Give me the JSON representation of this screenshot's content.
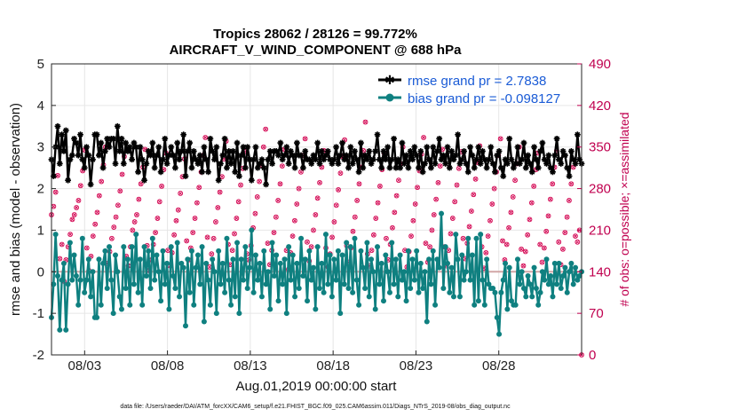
{
  "chart_data": {
    "type": "line",
    "title": "Tropics 28062 / 28126 = 99.772%",
    "subtitle": "AIRCRAFT_V_WIND_COMPONENT @ 688 hPa",
    "xlabel": "Aug.01,2019 00:00:00 start",
    "ylabel": "rmse and bias (model - observation)",
    "y2label": "# of obs: o=possible; ×=assimilated",
    "footnote": "data file: /Users/raeder/DAI/ATM_forcXX/CAM6_setup/f.e21.FHIST_BGC.f09_025.CAM6assim.011/Diags_NTrS_2019-08/obs_diag_output.nc",
    "x_unit": "days since Aug.01,2019 00:00:00",
    "xlim": [
      0,
      32
    ],
    "ylim": [
      -2,
      5
    ],
    "y2lim": [
      0,
      490
    ],
    "xticks": [
      2,
      7,
      12,
      17,
      22,
      27
    ],
    "xtick_labels": [
      "08/03",
      "08/08",
      "08/13",
      "08/18",
      "08/23",
      "08/28"
    ],
    "yticks": [
      -2,
      -1,
      0,
      1,
      2,
      3,
      4,
      5
    ],
    "ytick_labels": [
      "-2",
      "-1",
      "0",
      "1",
      "2",
      "3",
      "4",
      "5"
    ],
    "y2ticks": [
      0,
      70,
      140,
      210,
      280,
      350,
      420,
      490
    ],
    "y2tick_labels": [
      "0",
      "70",
      "140",
      "210",
      "280",
      "350",
      "420",
      "490"
    ],
    "legend_position": "top-right",
    "colors": {
      "rmse": "#000000",
      "bias": "#0f8080",
      "counts": "#d6145c",
      "right_axis": "#c0004f",
      "legend_text": "#1a5bd6",
      "zero_line": "#d2a6a6"
    },
    "series": [
      {
        "name": "rmse grand pr = 2.7838",
        "axis": "left",
        "marker": "star",
        "values": [
          2.7,
          2.3,
          3.0,
          3.5,
          2.6,
          3.3,
          2.9,
          3.4,
          2.2,
          2.7,
          2.8,
          3.2,
          3.1,
          2.8,
          3.3,
          2.7,
          2.5,
          3.0,
          2.8,
          2.1,
          2.7,
          3.3,
          3.3,
          2.8,
          3.1,
          2.5,
          2.9,
          3.2,
          3.0,
          3.2,
          3.2,
          2.6,
          3.5,
          2.9,
          3.2,
          2.6,
          3.1,
          2.9,
          3.0,
          2.7,
          3.1,
          3.0,
          2.4,
          3.0,
          2.7,
          2.2,
          2.6,
          2.9,
          2.8,
          3.1,
          2.5,
          2.8,
          3.0,
          2.4,
          2.7,
          3.2,
          2.6,
          2.8,
          3.0,
          2.8,
          2.5,
          3.1,
          2.7,
          2.9,
          3.3,
          2.3,
          2.9,
          3.1,
          2.5,
          2.9,
          2.7,
          2.6,
          2.8,
          2.4,
          3.0,
          2.7,
          2.4,
          3.2,
          2.9,
          2.7,
          3.0,
          2.2,
          2.6,
          2.8,
          3.2,
          2.5,
          2.9,
          2.6,
          2.9,
          2.4,
          3.1,
          2.3,
          2.8,
          3.0,
          2.5,
          3.0,
          2.7,
          2.2,
          2.7,
          3.0,
          2.5,
          2.6,
          2.7,
          2.5,
          2.1,
          2.7,
          2.9,
          2.6,
          2.9,
          2.9,
          2.8,
          3.1,
          2.7,
          2.8,
          3.0,
          2.6,
          2.9,
          2.8,
          2.5,
          3.1,
          2.8,
          2.8,
          2.5,
          2.9,
          2.7,
          2.7,
          2.6,
          2.8,
          2.7,
          3.1,
          2.6,
          2.9,
          2.7,
          2.8,
          2.9,
          2.7,
          2.6,
          2.7,
          3.0,
          2.6,
          2.8,
          3.1,
          2.7,
          2.8,
          2.5,
          3.0,
          2.6,
          2.9,
          2.7,
          2.4,
          3.1,
          2.5,
          2.8,
          2.7,
          2.9,
          2.6,
          2.7,
          2.9,
          3.3,
          2.7,
          2.5,
          2.9,
          2.7,
          3.0,
          2.5,
          2.7,
          3.2,
          2.5,
          2.7,
          2.5,
          3.1,
          2.6,
          2.8,
          2.5,
          2.9,
          2.7,
          3.0,
          2.8,
          2.5,
          2.9,
          2.4,
          2.6,
          3.0,
          2.7,
          2.5,
          3.0,
          2.6,
          2.9,
          3.2,
          2.7,
          2.8,
          2.6,
          3.0,
          2.5,
          2.9,
          2.7,
          2.8,
          3.3,
          2.6,
          2.7,
          2.9,
          2.6,
          2.4,
          3.0,
          2.8,
          2.5,
          2.7,
          3.0,
          2.6,
          2.9,
          2.7,
          2.5,
          2.7,
          3.0,
          2.6,
          2.4,
          2.8,
          2.9,
          2.5,
          2.3,
          2.7,
          2.6,
          3.2,
          2.7,
          2.5,
          2.6,
          3.0,
          2.6,
          2.7,
          3.1,
          2.5,
          2.8,
          2.6,
          2.4,
          3.0,
          2.7,
          2.5,
          2.9,
          3.1,
          2.7,
          2.6,
          2.8,
          2.5,
          2.4,
          2.8,
          3.2,
          2.7,
          2.6,
          2.9,
          2.8,
          2.5,
          2.3,
          2.9,
          2.7,
          2.6,
          3.3,
          2.7,
          2.6
        ]
      },
      {
        "name": "bias grand pr = -0.098127",
        "axis": "left",
        "marker": "dot",
        "values": [
          -1.1,
          -0.3,
          0.9,
          -0.1,
          -1.4,
          -0.2,
          0.2,
          -1.4,
          -0.3,
          0.7,
          -0.2,
          0.4,
          -0.1,
          -0.8,
          -0.2,
          0.8,
          -0.5,
          -0.2,
          0.3,
          -0.6,
          0.0,
          -1.1,
          -1.1,
          0.3,
          -0.8,
          0.2,
          0.5,
          -0.4,
          0.6,
          -0.2,
          -1.0,
          0.4,
          0.0,
          -0.6,
          -0.9,
          0.6,
          -0.4,
          0.3,
          -0.8,
          0.6,
          -0.3,
          0.9,
          -0.5,
          0.3,
          -0.8,
          0.6,
          -0.1,
          0.5,
          -0.4,
          0.8,
          -0.2,
          0.4,
          0.0,
          -0.7,
          0.5,
          -0.3,
          0.2,
          -0.9,
          0.6,
          -0.1,
          -0.4,
          0.7,
          -0.6,
          0.2,
          0.1,
          -1.3,
          0.3,
          -0.5,
          0.5,
          -0.8,
          0.1,
          0.4,
          -0.3,
          0.6,
          -1.2,
          0.2,
          -0.2,
          -0.8,
          0.3,
          0.0,
          -1.0,
          0.5,
          -0.3,
          0.2,
          -0.5,
          0.8,
          -0.2,
          -0.8,
          0.3,
          -0.6,
          0.7,
          -1.0,
          0.3,
          -0.2,
          0.6,
          -0.4,
          0.1,
          1.0,
          -0.5,
          0.4,
          -0.2,
          0.2,
          -0.6,
          0.5,
          -0.3,
          0.0,
          -0.9,
          0.7,
          -0.1,
          0.4,
          -0.7,
          0.2,
          -0.3,
          0.3,
          -1.0,
          0.6,
          -0.2,
          0.4,
          -0.6,
          0.2,
          -0.4,
          0.8,
          -0.1,
          0.3,
          -0.7,
          0.5,
          -0.2,
          0.1,
          -0.9,
          0.6,
          -0.4,
          0.2,
          -0.5,
          0.9,
          -0.3,
          0.4,
          -0.6,
          0.3,
          -0.2,
          0.5,
          -1.0,
          0.4,
          -0.3,
          0.7,
          -0.4,
          0.6,
          -0.5,
          0.8,
          -0.2,
          -0.8,
          0.5,
          0.1,
          -0.4,
          0.7,
          -0.6,
          0.3,
          0.0,
          -0.9,
          0.6,
          -0.3,
          0.2,
          -0.7,
          0.4,
          0.0,
          -0.5,
          0.7,
          -0.3,
          0.3,
          -0.6,
          0.4,
          -0.2,
          0.0,
          -0.7,
          0.5,
          -0.4,
          0.3,
          -0.2,
          0.5,
          -0.5,
          0.2,
          -0.4,
          0.0,
          -1.2,
          0.3,
          -0.3,
          0.5,
          -0.8,
          0.3,
          0.1,
          1.4,
          -0.4,
          0.6,
          0.2,
          -0.5,
          0.1,
          -0.6,
          0.9,
          0.3,
          -0.6,
          0.4,
          -0.2,
          0.0,
          0.8,
          -0.2,
          0.4,
          -0.8,
          0.8,
          -0.7,
          0.9,
          -0.2,
          -0.8,
          0.3,
          -0.3,
          -0.4,
          -0.4,
          -0.5,
          -1.1,
          -1.5,
          -0.5,
          -0.2,
          0.2,
          -0.9,
          0.1,
          -0.7,
          -0.8,
          -0.8,
          0.3,
          -0.3,
          0.0,
          -0.4,
          -0.6,
          -0.1,
          -0.3,
          -0.6,
          0.1,
          -0.4,
          -0.8,
          -0.5,
          0.0,
          -0.2,
          0.3,
          -0.3,
          -0.1,
          -0.6,
          0.2,
          -0.3,
          0.2,
          -0.4,
          -0.1,
          0.1,
          -0.5,
          0.0,
          0.2,
          -0.3,
          0.1,
          -0.2,
          -0.1,
          0.0
        ]
      }
    ],
    "count_series": {
      "name": "# of obs",
      "axis": "right",
      "marker": "circle-x",
      "values": [
        236,
        250,
        274,
        302,
        162,
        186,
        124,
        160,
        182,
        203,
        228,
        236,
        248,
        260,
        285,
        310,
        345,
        180,
        142,
        166,
        200,
        220,
        240,
        268,
        292,
        320,
        350,
        154,
        174,
        196,
        215,
        232,
        252,
        276,
        304,
        334,
        166,
        150,
        182,
        210,
        224,
        236,
        262,
        288,
        316,
        346,
        184,
        142,
        160,
        186,
        206,
        230,
        258,
        284,
        312,
        340,
        176,
        150,
        172,
        202,
        226,
        244,
        272,
        300,
        330,
        192,
        160,
        180,
        206,
        230,
        256,
        282,
        308,
        336,
        366,
        198,
        148,
        170,
        196,
        224,
        248,
        274,
        300,
        330,
        360,
        186,
        152,
        176,
        204,
        230,
        258,
        286,
        314,
        342,
        170,
        160,
        184,
        214,
        238,
        266,
        292,
        320,
        350,
        380,
        188,
        152,
        176,
        206,
        232,
        260,
        288,
        318,
        346,
        176,
        144,
        172,
        200,
        226,
        254,
        280,
        308,
        336,
        364,
        190,
        158,
        182,
        210,
        236,
        264,
        290,
        316,
        344,
        180,
        148,
        170,
        198,
        224,
        252,
        278,
        306,
        334,
        362,
        184,
        156,
        180,
        208,
        232,
        260,
        288,
        316,
        344,
        392,
        170,
        150,
        176,
        202,
        230,
        256,
        284,
        312,
        340,
        196,
        160,
        186,
        214,
        240,
        268,
        294,
        322,
        350,
        176,
        148,
        174,
        200,
        226,
        254,
        282,
        310,
        338,
        366,
        188,
        156,
        182,
        210,
        236,
        262,
        290,
        318,
        346,
        182,
        150,
        176,
        204,
        230,
        258,
        286,
        314,
        342,
        196,
        162,
        188,
        216,
        242,
        270,
        296,
        324,
        352,
        182,
        146,
        172,
        200,
        226,
        254,
        280,
        308,
        336,
        364,
        192,
        160,
        186,
        214,
        240,
        266,
        294,
        322,
        350,
        178,
        150,
        174,
        202,
        228,
        256,
        284,
        312,
        340,
        186,
        156,
        180,
        208,
        234,
        262,
        288,
        316,
        344,
        190,
        152,
        178,
        206,
        232,
        260,
        288,
        316,
        200,
        190,
        210,
        0
      ]
    }
  }
}
